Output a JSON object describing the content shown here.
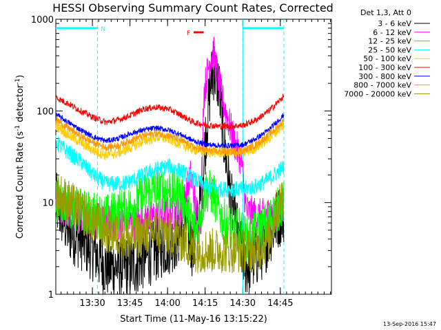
{
  "chart_data": {
    "type": "line",
    "title": "HESSI Observing Summary Count Rates, Corrected",
    "xlabel": "Start Time (11-May-16 13:15:22)",
    "ylabel_parts": [
      "Corrected Count Rate (s",
      "-1",
      " detector",
      "-1",
      ")"
    ],
    "yscale": "log",
    "ylim": [
      1,
      1000
    ],
    "xlim_min": [
      0,
      110
    ],
    "x_ticks": [
      {
        "t": 14.6,
        "label": "13:30"
      },
      {
        "t": 29.6,
        "label": "13:45"
      },
      {
        "t": 44.6,
        "label": "14:00"
      },
      {
        "t": 59.6,
        "label": "14:15"
      },
      {
        "t": 74.6,
        "label": "14:30"
      },
      {
        "t": 89.6,
        "label": "14:45"
      }
    ],
    "y_ticks": [
      {
        "v": 1,
        "label": "1"
      },
      {
        "v": 10,
        "label": "10"
      },
      {
        "v": 100,
        "label": "100"
      },
      {
        "v": 1000,
        "label": "1000"
      }
    ],
    "legend_header": "Det 1,3, Att 0",
    "legend_position": "right",
    "series": [
      {
        "name": "3 - 6 keV",
        "color": "#000000",
        "points": [
          [
            0,
            10
          ],
          [
            5,
            5
          ],
          [
            10,
            4
          ],
          [
            15,
            3
          ],
          [
            20,
            2
          ],
          [
            30,
            2
          ],
          [
            40,
            3
          ],
          [
            48,
            4
          ],
          [
            52,
            6
          ],
          [
            55,
            3
          ],
          [
            58,
            12
          ],
          [
            60,
            60
          ],
          [
            62,
            220
          ],
          [
            63,
            280
          ],
          [
            65,
            200
          ],
          [
            67,
            50
          ],
          [
            70,
            10
          ],
          [
            73,
            4
          ],
          [
            76,
            2
          ],
          [
            82,
            3
          ],
          [
            86,
            5
          ],
          [
            89,
            7
          ],
          [
            91,
            8
          ]
        ]
      },
      {
        "name": "6 - 12 keV",
        "color": "#ff00ff",
        "points": [
          [
            0,
            10
          ],
          [
            10,
            7
          ],
          [
            20,
            6
          ],
          [
            30,
            6
          ],
          [
            40,
            7
          ],
          [
            50,
            8
          ],
          [
            54,
            20
          ],
          [
            56,
            8
          ],
          [
            58,
            7
          ],
          [
            59,
            150
          ],
          [
            61,
            320
          ],
          [
            62,
            390
          ],
          [
            63,
            430
          ],
          [
            64,
            300
          ],
          [
            66,
            150
          ],
          [
            70,
            60
          ],
          [
            72,
            40
          ],
          [
            74,
            30
          ],
          [
            76,
            8
          ],
          [
            82,
            7
          ],
          [
            88,
            8
          ],
          [
            91,
            9
          ]
        ]
      },
      {
        "name": "12 - 25 keV",
        "color": "#00ff00",
        "points": [
          [
            0,
            11
          ],
          [
            10,
            8
          ],
          [
            20,
            7
          ],
          [
            30,
            9
          ],
          [
            35,
            12
          ],
          [
            40,
            14
          ],
          [
            45,
            14
          ],
          [
            50,
            12
          ],
          [
            53,
            7
          ],
          [
            56,
            5
          ],
          [
            60,
            14
          ],
          [
            63,
            12
          ],
          [
            66,
            7
          ],
          [
            70,
            5
          ],
          [
            74,
            5
          ],
          [
            76,
            4
          ],
          [
            82,
            5
          ],
          [
            88,
            8
          ],
          [
            91,
            10
          ]
        ]
      },
      {
        "name": "25 - 50 keV",
        "color": "#00ffff",
        "points": [
          [
            0,
            45
          ],
          [
            5,
            35
          ],
          [
            10,
            28
          ],
          [
            15,
            20
          ],
          [
            20,
            16
          ],
          [
            25,
            16
          ],
          [
            30,
            17
          ],
          [
            35,
            20
          ],
          [
            40,
            23
          ],
          [
            45,
            25
          ],
          [
            50,
            22
          ],
          [
            55,
            18
          ],
          [
            60,
            15
          ],
          [
            65,
            14
          ],
          [
            70,
            14
          ],
          [
            75,
            14
          ],
          [
            80,
            15
          ],
          [
            85,
            18
          ],
          [
            88,
            21
          ],
          [
            91,
            25
          ]
        ]
      },
      {
        "name": "50 - 100 keV",
        "color": "#ffcc00",
        "points": [
          [
            0,
            70
          ],
          [
            5,
            55
          ],
          [
            10,
            45
          ],
          [
            15,
            37
          ],
          [
            20,
            33
          ],
          [
            25,
            35
          ],
          [
            30,
            40
          ],
          [
            35,
            47
          ],
          [
            40,
            52
          ],
          [
            45,
            50
          ],
          [
            50,
            43
          ],
          [
            55,
            38
          ],
          [
            60,
            36
          ],
          [
            65,
            35
          ],
          [
            70,
            35
          ],
          [
            75,
            35
          ],
          [
            80,
            40
          ],
          [
            85,
            50
          ],
          [
            88,
            60
          ],
          [
            91,
            70
          ]
        ]
      },
      {
        "name": "100 - 300 keV",
        "color": "#ff0000",
        "points": [
          [
            0,
            140
          ],
          [
            5,
            120
          ],
          [
            10,
            100
          ],
          [
            15,
            85
          ],
          [
            20,
            75
          ],
          [
            25,
            80
          ],
          [
            30,
            90
          ],
          [
            35,
            105
          ],
          [
            40,
            110
          ],
          [
            45,
            105
          ],
          [
            50,
            90
          ],
          [
            55,
            75
          ],
          [
            60,
            70
          ],
          [
            65,
            68
          ],
          [
            70,
            68
          ],
          [
            75,
            70
          ],
          [
            80,
            80
          ],
          [
            85,
            100
          ],
          [
            88,
            120
          ],
          [
            91,
            145
          ]
        ]
      },
      {
        "name": "300 - 800 keV",
        "color": "#0000ff",
        "points": [
          [
            0,
            92
          ],
          [
            5,
            75
          ],
          [
            10,
            62
          ],
          [
            15,
            52
          ],
          [
            20,
            47
          ],
          [
            25,
            50
          ],
          [
            30,
            57
          ],
          [
            35,
            62
          ],
          [
            40,
            65
          ],
          [
            45,
            62
          ],
          [
            50,
            55
          ],
          [
            55,
            47
          ],
          [
            60,
            43
          ],
          [
            65,
            42
          ],
          [
            70,
            42
          ],
          [
            75,
            43
          ],
          [
            80,
            50
          ],
          [
            85,
            62
          ],
          [
            88,
            75
          ],
          [
            91,
            90
          ]
        ]
      },
      {
        "name": "800 - 7000 keV",
        "color": "#ff9900",
        "points": [
          [
            0,
            80
          ],
          [
            5,
            65
          ],
          [
            10,
            53
          ],
          [
            15,
            45
          ],
          [
            20,
            40
          ],
          [
            25,
            42
          ],
          [
            30,
            48
          ],
          [
            35,
            54
          ],
          [
            40,
            57
          ],
          [
            45,
            54
          ],
          [
            50,
            48
          ],
          [
            55,
            40
          ],
          [
            60,
            37
          ],
          [
            65,
            36
          ],
          [
            70,
            36
          ],
          [
            75,
            37
          ],
          [
            80,
            43
          ],
          [
            85,
            55
          ],
          [
            88,
            65
          ],
          [
            91,
            78
          ]
        ]
      },
      {
        "name": "7000 - 20000 keV",
        "color": "#999900",
        "points": [
          [
            0,
            13
          ],
          [
            10,
            8
          ],
          [
            20,
            5
          ],
          [
            30,
            4
          ],
          [
            40,
            5
          ],
          [
            50,
            4
          ],
          [
            55,
            3
          ],
          [
            60,
            3
          ],
          [
            65,
            3
          ],
          [
            70,
            3
          ],
          [
            75,
            3
          ],
          [
            80,
            3
          ],
          [
            85,
            4
          ],
          [
            88,
            8
          ],
          [
            91,
            13
          ]
        ]
      }
    ],
    "bars": [
      {
        "label": "N",
        "color": "#00ffff",
        "segments": [
          [
            0,
            16.6
          ],
          [
            74.6,
            91
          ]
        ]
      },
      {
        "label": "F",
        "color": "#ff0000",
        "segments": [
          [
            55,
            59
          ]
        ]
      }
    ],
    "saa_lines": [
      16.6,
      74.6,
      91
    ]
  },
  "footer_date": "13-Sep-2016 15:47"
}
